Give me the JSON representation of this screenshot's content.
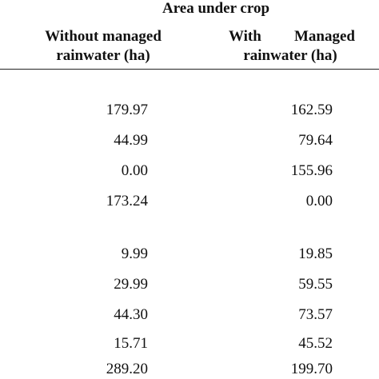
{
  "table": {
    "title": "Area under crop",
    "headers": {
      "without": [
        "Without managed",
        "rainwater (ha)"
      ],
      "with_a": "With",
      "with_b": "Managed",
      "with_line2": "rainwater (ha)"
    },
    "rows": [
      {
        "without": "179.97",
        "with": "162.59"
      },
      {
        "without": "44.99",
        "with": "79.64"
      },
      {
        "without": "0.00",
        "with": "155.96"
      },
      {
        "without": "173.24",
        "with": "0.00"
      },
      {
        "without": "9.99",
        "with": "19.85"
      },
      {
        "without": "29.99",
        "with": "59.55"
      },
      {
        "without": "44.30",
        "with": "73.57"
      },
      {
        "without": "15.71",
        "with": "45.52"
      },
      {
        "without": "289.20",
        "with": "199.70"
      }
    ]
  }
}
